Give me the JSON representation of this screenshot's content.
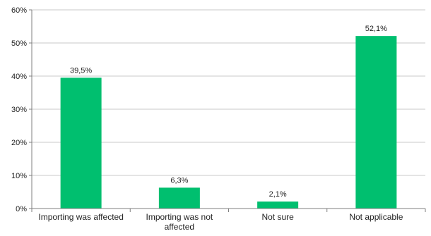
{
  "chart_data": {
    "type": "bar",
    "categories": [
      [
        "Importing was affected"
      ],
      [
        "Importing was not",
        "affected"
      ],
      [
        "Not sure"
      ],
      [
        "Not applicable"
      ]
    ],
    "values": [
      39.5,
      6.3,
      2.1,
      52.1
    ],
    "data_labels": [
      "39,5%",
      "6,3%",
      "2,1%",
      "52,1%"
    ],
    "yticks": [
      0,
      10,
      20,
      30,
      40,
      50,
      60
    ],
    "ytick_labels": [
      "0%",
      "10%",
      "20%",
      "30%",
      "40%",
      "50%",
      "60%"
    ],
    "ylim": [
      0,
      60
    ],
    "title": "",
    "xlabel": "",
    "ylabel": "",
    "grid": true,
    "legend": "none",
    "bar_color": "#00bf6f",
    "grid_color": "#c8c8c8",
    "axis_color": "#7f7f7f"
  }
}
